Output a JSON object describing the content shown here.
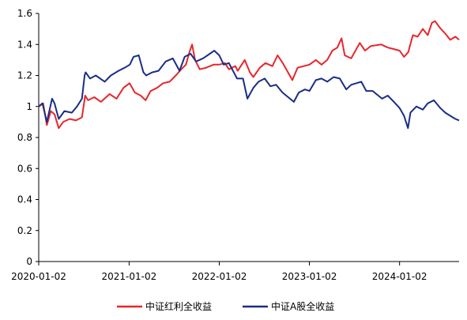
{
  "chart_data": {
    "type": "line",
    "title": "",
    "xlabel": "",
    "ylabel": "",
    "ylim": [
      0,
      1.6
    ],
    "yticks": [
      "0",
      "0.2",
      "0.4",
      "0.6",
      "0.8",
      "1",
      "1.2",
      "1.4",
      "1.6"
    ],
    "xticks": [
      "2020-01-02",
      "2021-01-02",
      "2022-01-02",
      "2023-01-02",
      "2024-01-02"
    ],
    "xlim": [
      "2020-01-02",
      "2024-08-30"
    ],
    "grid": false,
    "legend_position": "bottom",
    "series": [
      {
        "name": "中证红利全收益",
        "color": "#e8262b",
        "points": [
          [
            "2020-01-02",
            1.0
          ],
          [
            "2020-01-20",
            1.02
          ],
          [
            "2020-02-04",
            0.88
          ],
          [
            "2020-02-20",
            0.97
          ],
          [
            "2020-03-06",
            0.95
          ],
          [
            "2020-03-23",
            0.86
          ],
          [
            "2020-04-10",
            0.9
          ],
          [
            "2020-05-06",
            0.92
          ],
          [
            "2020-06-01",
            0.91
          ],
          [
            "2020-06-25",
            0.93
          ],
          [
            "2020-07-08",
            1.07
          ],
          [
            "2020-07-20",
            1.04
          ],
          [
            "2020-08-14",
            1.06
          ],
          [
            "2020-09-10",
            1.03
          ],
          [
            "2020-10-15",
            1.08
          ],
          [
            "2020-11-12",
            1.05
          ],
          [
            "2020-12-10",
            1.12
          ],
          [
            "2021-01-04",
            1.15
          ],
          [
            "2021-01-25",
            1.09
          ],
          [
            "2021-02-18",
            1.07
          ],
          [
            "2021-03-10",
            1.04
          ],
          [
            "2021-03-30",
            1.1
          ],
          [
            "2021-04-25",
            1.12
          ],
          [
            "2021-05-20",
            1.15
          ],
          [
            "2021-06-15",
            1.16
          ],
          [
            "2021-07-10",
            1.2
          ],
          [
            "2021-08-01",
            1.24
          ],
          [
            "2021-08-20",
            1.27
          ],
          [
            "2021-09-03",
            1.35
          ],
          [
            "2021-09-14",
            1.4
          ],
          [
            "2021-09-26",
            1.3
          ],
          [
            "2021-10-15",
            1.24
          ],
          [
            "2021-11-10",
            1.25
          ],
          [
            "2021-12-10",
            1.27
          ],
          [
            "2022-01-02",
            1.27
          ],
          [
            "2022-01-25",
            1.28
          ],
          [
            "2022-02-10",
            1.24
          ],
          [
            "2022-03-08",
            1.26
          ],
          [
            "2022-03-18",
            1.23
          ],
          [
            "2022-04-15",
            1.3
          ],
          [
            "2022-05-06",
            1.22
          ],
          [
            "2022-05-20",
            1.19
          ],
          [
            "2022-06-15",
            1.25
          ],
          [
            "2022-07-08",
            1.28
          ],
          [
            "2022-08-05",
            1.26
          ],
          [
            "2022-08-26",
            1.33
          ],
          [
            "2022-09-16",
            1.28
          ],
          [
            "2022-10-25",
            1.17
          ],
          [
            "2022-11-15",
            1.25
          ],
          [
            "2022-12-10",
            1.26
          ],
          [
            "2023-01-02",
            1.27
          ],
          [
            "2023-01-28",
            1.3
          ],
          [
            "2023-02-20",
            1.27
          ],
          [
            "2023-03-15",
            1.3
          ],
          [
            "2023-04-05",
            1.36
          ],
          [
            "2023-04-25",
            1.38
          ],
          [
            "2023-05-12",
            1.44
          ],
          [
            "2023-05-25",
            1.33
          ],
          [
            "2023-06-20",
            1.31
          ],
          [
            "2023-07-25",
            1.41
          ],
          [
            "2023-08-15",
            1.36
          ],
          [
            "2023-09-08",
            1.39
          ],
          [
            "2023-10-20",
            1.4
          ],
          [
            "2023-11-15",
            1.38
          ],
          [
            "2023-12-10",
            1.37
          ],
          [
            "2024-01-02",
            1.36
          ],
          [
            "2024-01-20",
            1.32
          ],
          [
            "2024-02-06",
            1.35
          ],
          [
            "2024-02-25",
            1.46
          ],
          [
            "2024-03-15",
            1.45
          ],
          [
            "2024-04-05",
            1.5
          ],
          [
            "2024-04-25",
            1.46
          ],
          [
            "2024-05-12",
            1.54
          ],
          [
            "2024-05-25",
            1.55
          ],
          [
            "2024-06-12",
            1.51
          ],
          [
            "2024-07-05",
            1.47
          ],
          [
            "2024-07-25",
            1.43
          ],
          [
            "2024-08-15",
            1.45
          ],
          [
            "2024-08-30",
            1.43
          ]
        ]
      },
      {
        "name": "中证A股全收益",
        "color": "#1a2d86",
        "points": [
          [
            "2020-01-02",
            1.0
          ],
          [
            "2020-01-17",
            1.02
          ],
          [
            "2020-02-04",
            0.9
          ],
          [
            "2020-02-25",
            1.05
          ],
          [
            "2020-03-06",
            1.02
          ],
          [
            "2020-03-23",
            0.92
          ],
          [
            "2020-04-15",
            0.97
          ],
          [
            "2020-05-15",
            0.96
          ],
          [
            "2020-06-05",
            1.0
          ],
          [
            "2020-06-25",
            1.05
          ],
          [
            "2020-07-06",
            1.2
          ],
          [
            "2020-07-10",
            1.22
          ],
          [
            "2020-07-28",
            1.18
          ],
          [
            "2020-08-20",
            1.2
          ],
          [
            "2020-09-25",
            1.16
          ],
          [
            "2020-10-20",
            1.2
          ],
          [
            "2020-11-20",
            1.23
          ],
          [
            "2020-12-15",
            1.25
          ],
          [
            "2021-01-05",
            1.27
          ],
          [
            "2021-01-20",
            1.32
          ],
          [
            "2021-02-10",
            1.33
          ],
          [
            "2021-03-01",
            1.22
          ],
          [
            "2021-03-12",
            1.2
          ],
          [
            "2021-04-05",
            1.22
          ],
          [
            "2021-05-01",
            1.23
          ],
          [
            "2021-05-30",
            1.29
          ],
          [
            "2021-06-28",
            1.31
          ],
          [
            "2021-07-25",
            1.23
          ],
          [
            "2021-08-15",
            1.32
          ],
          [
            "2021-09-08",
            1.34
          ],
          [
            "2021-09-30",
            1.29
          ],
          [
            "2021-10-28",
            1.31
          ],
          [
            "2021-11-25",
            1.34
          ],
          [
            "2021-12-13",
            1.36
          ],
          [
            "2022-01-02",
            1.33
          ],
          [
            "2022-01-20",
            1.27
          ],
          [
            "2022-02-10",
            1.28
          ],
          [
            "2022-03-15",
            1.18
          ],
          [
            "2022-04-08",
            1.18
          ],
          [
            "2022-04-26",
            1.05
          ],
          [
            "2022-05-20",
            1.12
          ],
          [
            "2022-06-10",
            1.16
          ],
          [
            "2022-07-05",
            1.18
          ],
          [
            "2022-07-28",
            1.13
          ],
          [
            "2022-08-20",
            1.14
          ],
          [
            "2022-09-15",
            1.09
          ],
          [
            "2022-10-31",
            1.03
          ],
          [
            "2022-11-20",
            1.09
          ],
          [
            "2022-12-15",
            1.11
          ],
          [
            "2023-01-02",
            1.1
          ],
          [
            "2023-01-28",
            1.17
          ],
          [
            "2023-02-20",
            1.18
          ],
          [
            "2023-03-15",
            1.16
          ],
          [
            "2023-04-10",
            1.19
          ],
          [
            "2023-05-05",
            1.18
          ],
          [
            "2023-05-31",
            1.11
          ],
          [
            "2023-06-20",
            1.14
          ],
          [
            "2023-07-31",
            1.16
          ],
          [
            "2023-08-20",
            1.1
          ],
          [
            "2023-09-15",
            1.1
          ],
          [
            "2023-10-23",
            1.05
          ],
          [
            "2023-11-15",
            1.07
          ],
          [
            "2023-12-10",
            1.03
          ],
          [
            "2024-01-02",
            0.99
          ],
          [
            "2024-01-20",
            0.94
          ],
          [
            "2024-02-05",
            0.86
          ],
          [
            "2024-02-15",
            0.96
          ],
          [
            "2024-03-10",
            1.0
          ],
          [
            "2024-04-05",
            0.98
          ],
          [
            "2024-04-25",
            1.02
          ],
          [
            "2024-05-20",
            1.04
          ],
          [
            "2024-06-15",
            0.99
          ],
          [
            "2024-07-05",
            0.96
          ],
          [
            "2024-07-25",
            0.94
          ],
          [
            "2024-08-15",
            0.92
          ],
          [
            "2024-08-30",
            0.91
          ]
        ]
      }
    ]
  }
}
